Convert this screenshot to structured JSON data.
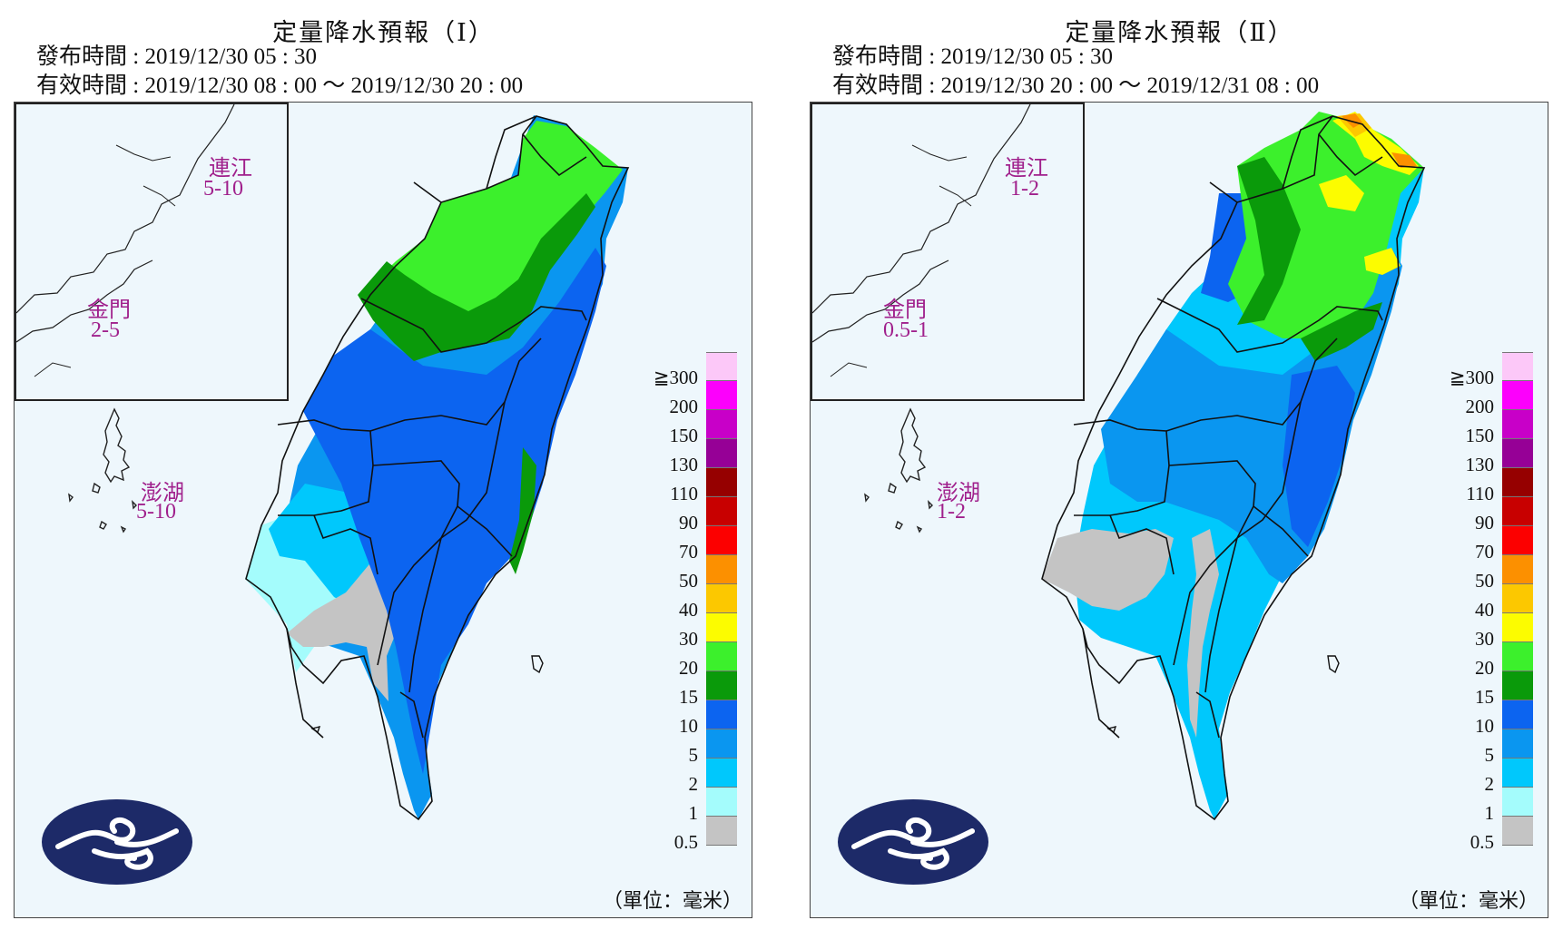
{
  "panels": [
    {
      "title": "定量降水預報（Ⅰ）",
      "issue_time": "發布時間 : 2019/12/30 05 : 30",
      "valid_time": "有效時間 : 2019/12/30 08 : 00 ～ 2019/12/30 20 : 00",
      "islands": [
        {
          "name": "連江",
          "value": "5-10"
        },
        {
          "name": "金門",
          "value": "2-5"
        },
        {
          "name": "澎湖",
          "value": "5-10"
        }
      ]
    },
    {
      "title": "定量降水預報（Ⅱ）",
      "issue_time": "發布時間 : 2019/12/30 05 : 30",
      "valid_time": "有效時間 : 2019/12/30 20 : 00 ～ 2019/12/31 08 : 00",
      "islands": [
        {
          "name": "連江",
          "value": "1-2"
        },
        {
          "name": "金門",
          "value": "0.5-1"
        },
        {
          "name": "澎湖",
          "value": "1-2"
        }
      ]
    }
  ],
  "legend": {
    "levels": [
      "≧300",
      "200",
      "150",
      "130",
      "110",
      "90",
      "70",
      "50",
      "40",
      "30",
      "20",
      "15",
      "10",
      "5",
      "2",
      "1",
      "0.5"
    ],
    "colors": [
      "#fcc8f8",
      "#fc00fc",
      "#c800c8",
      "#960096",
      "#960000",
      "#c80000",
      "#fc0000",
      "#fc9000",
      "#fcc800",
      "#fcfc00",
      "#3cf02c",
      "#0a9a0a",
      "#0c64f0",
      "#0a96f0",
      "#00c8fc",
      "#a4fcfc",
      "#c4c4c4"
    ],
    "unit": "（單位：毫米）"
  }
}
